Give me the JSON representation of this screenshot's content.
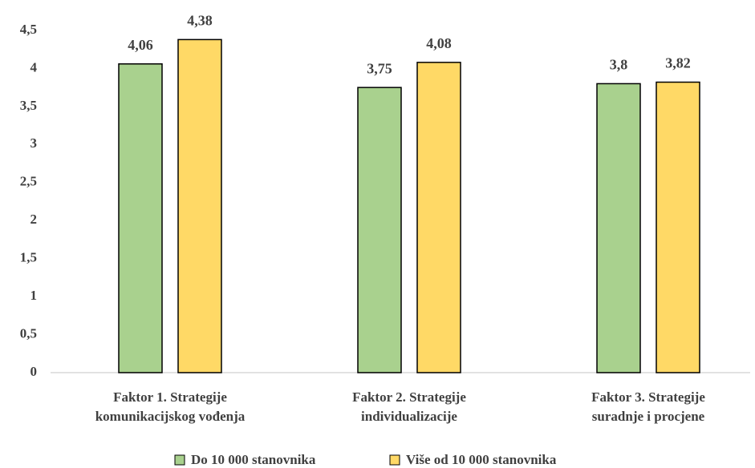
{
  "chart_data": {
    "type": "bar",
    "categories": [
      [
        "Faktor 1. Strategije",
        "komunikacijskog vođenja"
      ],
      [
        "Faktor 2. Strategije",
        "individualizacije"
      ],
      [
        "Faktor 3. Strategije",
        "suradnje i procjene"
      ]
    ],
    "series": [
      {
        "name": "Do 10 000 stanovnika",
        "color": "#a9d18e",
        "values": [
          4.06,
          3.75,
          3.8
        ],
        "value_labels": [
          "4,06",
          "3,75",
          "3,8"
        ]
      },
      {
        "name": "Više od 10 000 stanovnika",
        "color": "#ffd966",
        "values": [
          4.38,
          4.08,
          3.82
        ],
        "value_labels": [
          "4,38",
          "4,08",
          "3,82"
        ]
      }
    ],
    "ylim": [
      0,
      4.5
    ],
    "yticks": [
      0,
      {
        "value": 0.5,
        "label": "0,5"
      },
      1,
      {
        "value": 1.5,
        "label": "1,5"
      },
      2,
      {
        "value": 2.5,
        "label": "2,5"
      },
      3,
      {
        "value": 3.5,
        "label": "3,5"
      },
      4,
      {
        "value": 4.5,
        "label": "4,5"
      }
    ],
    "grid": false,
    "legend": "bottom"
  }
}
